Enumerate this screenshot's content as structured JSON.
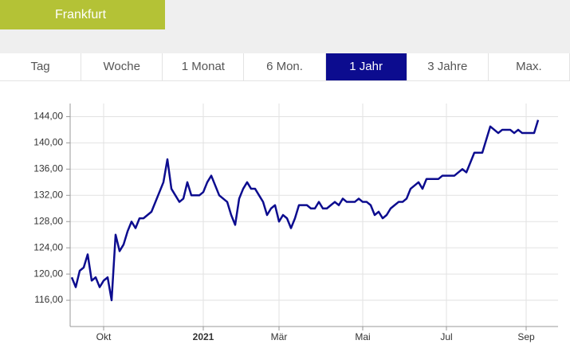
{
  "header": {
    "title": "Frankfurt"
  },
  "tabs": [
    "Tag",
    "Woche",
    "1 Monat",
    "6 Mon.",
    "1 Jahr",
    "3 Jahre",
    "Max."
  ],
  "active_tab": 4,
  "chart_data": {
    "type": "line",
    "categories": [
      null,
      null,
      null,
      null,
      null,
      null,
      null,
      null,
      "Okt",
      null,
      null,
      null,
      null,
      null,
      null,
      null,
      null,
      null,
      null,
      null,
      null,
      null,
      null,
      null,
      null,
      null,
      null,
      null,
      null,
      null,
      null,
      null,
      null,
      "2021",
      null,
      null,
      null,
      null,
      null,
      null,
      null,
      null,
      null,
      null,
      null,
      null,
      null,
      null,
      null,
      null,
      null,
      null,
      "Mär",
      null,
      null,
      null,
      null,
      null,
      null,
      null,
      null,
      null,
      null,
      null,
      null,
      null,
      null,
      null,
      null,
      null,
      null,
      null,
      null,
      "Mai",
      null,
      null,
      null,
      null,
      null,
      null,
      null,
      null,
      null,
      null,
      null,
      null,
      null,
      null,
      null,
      null,
      null,
      null,
      null,
      null,
      "Jul",
      null,
      null,
      null,
      null,
      null,
      null,
      null,
      null,
      null,
      null,
      null,
      null,
      null,
      null,
      null,
      null,
      null,
      null,
      null,
      "Sep",
      null,
      null,
      null
    ],
    "values": [
      119.5,
      118,
      120.5,
      121,
      123,
      119,
      119.5,
      118,
      119,
      119.5,
      116,
      126,
      123.5,
      124.5,
      126.5,
      128,
      127,
      128.5,
      128.5,
      129,
      129.5,
      131,
      132.5,
      134,
      137.5,
      133,
      132,
      131,
      131.5,
      134,
      132,
      132,
      132,
      132.5,
      134,
      135,
      133.5,
      132,
      131.5,
      131,
      129,
      127.5,
      131.5,
      133,
      134,
      133,
      133,
      132,
      131,
      129,
      130,
      130.5,
      128,
      129,
      128.5,
      127,
      128.5,
      130.5,
      130.5,
      130.5,
      130,
      130,
      131,
      130,
      130,
      130.5,
      131,
      130.5,
      131.5,
      131,
      131,
      131,
      131.5,
      131,
      131,
      130.5,
      129,
      129.5,
      128.5,
      129,
      130,
      130.5,
      131,
      131,
      131.5,
      133,
      133.5,
      134,
      133,
      134.5,
      134.5,
      134.5,
      134.5,
      135,
      135,
      135,
      135,
      135.5,
      136,
      135.5,
      137,
      138.5,
      138.5,
      138.5,
      140.5,
      142.5,
      142,
      141.5,
      142,
      142,
      142,
      141.5,
      142,
      141.5,
      141.5,
      141.5,
      141.5,
      143.5
    ],
    "color": "#0c0c8f",
    "ylim": [
      112,
      146
    ],
    "yticks": [
      {
        "value": 116,
        "label": "116,00"
      },
      {
        "value": 120,
        "label": "120,00"
      },
      {
        "value": 124,
        "label": "124,00"
      },
      {
        "value": 128,
        "label": "128,00"
      },
      {
        "value": 132,
        "label": "132,00"
      },
      {
        "value": 136,
        "label": "136,00"
      },
      {
        "value": 140,
        "label": "140,00"
      },
      {
        "value": 144,
        "label": "144,00"
      }
    ],
    "grid": true
  }
}
